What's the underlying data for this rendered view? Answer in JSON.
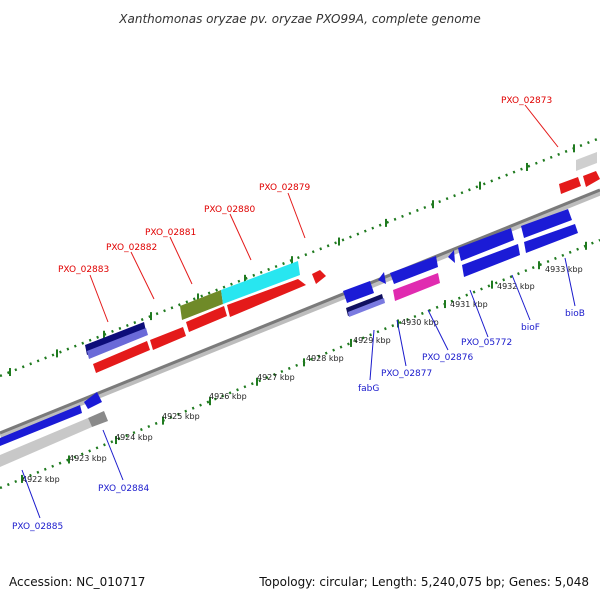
{
  "title": "Xanthomonas oryzae pv. oryzae PXO99A, complete genome",
  "footer": {
    "accession": "Accession: NC_010717",
    "summary": "Topology: circular; Length: 5,240,075 bp; Genes: 5,048"
  },
  "colors": {
    "forward_label": "#e00000",
    "reverse_label": "#1a1acc",
    "backbone": "#888888"
  },
  "tick_labels": [
    "4922 kbp",
    "4923 kbp",
    "4924 kbp",
    "4925 kbp",
    "4926 kbp",
    "4927 kbp",
    "4928 kbp",
    "4929 kbp",
    "4930 kbp",
    "4931 kbp",
    "4932 kbp",
    "4933 kbp"
  ],
  "gene_labels": [
    {
      "text": "PXO_02883",
      "strand": "forward"
    },
    {
      "text": "PXO_02882",
      "strand": "forward"
    },
    {
      "text": "PXO_02881",
      "strand": "forward"
    },
    {
      "text": "PXO_02880",
      "strand": "forward"
    },
    {
      "text": "PXO_02879",
      "strand": "forward"
    },
    {
      "text": "PXO_02873",
      "strand": "forward"
    },
    {
      "text": "PXO_02884",
      "strand": "reverse"
    },
    {
      "text": "PXO_02885",
      "strand": "reverse"
    },
    {
      "text": "fabG",
      "strand": "reverse"
    },
    {
      "text": "PXO_02877",
      "strand": "reverse"
    },
    {
      "text": "PXO_02876",
      "strand": "reverse"
    },
    {
      "text": "PXO_05772",
      "strand": "reverse"
    },
    {
      "text": "bioF",
      "strand": "reverse"
    },
    {
      "text": "bioB",
      "strand": "reverse"
    }
  ]
}
